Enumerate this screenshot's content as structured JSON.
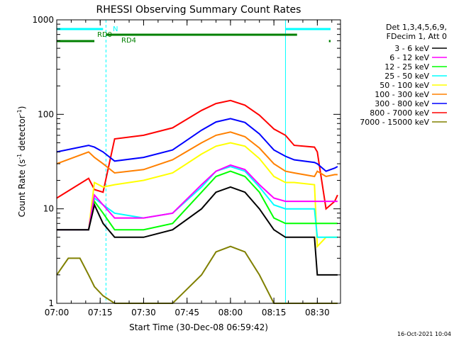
{
  "chart_data": {
    "type": "line",
    "title": "RHESSI Observing Summary Count Rates",
    "xlabel": "Start Time (30-Dec-08 06:59:42)",
    "ylabel": "Count Rate (s",
    "ylabel_sup1": "-1",
    "ylabel_mid": " detector",
    "ylabel_sup2": "-1",
    "ylabel_end": ")",
    "y_scale": "log",
    "ylim": [
      1,
      1000
    ],
    "xlim": [
      "07:00",
      "08:38"
    ],
    "x_ticks": [
      "07:00",
      "07:15",
      "07:30",
      "07:45",
      "08:00",
      "08:15",
      "08:30"
    ],
    "y_ticks": [
      "1",
      "10",
      "100",
      "1000"
    ],
    "legend_placement": "right",
    "legend_header": [
      "Det 1,3,4,5,6,9,",
      "FDecim 1, Att 0"
    ],
    "annotations": {
      "n_label": "N",
      "rd0_label": "RD0",
      "rd4_label": "RD4",
      "date_stamp": "16-Oct-2021 10:04"
    },
    "night_intervals": [
      [
        "07:00",
        "07:17"
      ],
      [
        "08:19",
        "08:38"
      ]
    ],
    "series": [
      {
        "name": "3 - 6 keV",
        "color": "#000000",
        "x": [
          "07:00",
          "07:11",
          "07:13",
          "07:16",
          "07:20",
          "07:30",
          "07:40",
          "07:50",
          "07:55",
          "08:00",
          "08:05",
          "08:10",
          "08:15",
          "08:19",
          "08:22",
          "08:29",
          "08:30",
          "08:33",
          "08:36",
          "08:37"
        ],
        "values": [
          6,
          6,
          11,
          7,
          5,
          5,
          6,
          10,
          15,
          17,
          15,
          10,
          6,
          5,
          5,
          5,
          2,
          2,
          2,
          2
        ]
      },
      {
        "name": "6 - 12 keV",
        "color": "#ff00ff",
        "x": [
          "07:00",
          "07:11",
          "07:13",
          "07:16",
          "07:20",
          "07:30",
          "07:40",
          "07:50",
          "07:55",
          "08:00",
          "08:05",
          "08:10",
          "08:15",
          "08:19",
          "08:22",
          "08:29",
          "08:30",
          "08:33",
          "08:36",
          "08:37"
        ],
        "values": [
          6,
          6,
          14,
          11,
          8,
          8,
          9,
          18,
          25,
          29,
          26,
          18,
          13,
          12,
          12,
          12,
          12,
          12,
          12,
          12
        ]
      },
      {
        "name": "12 - 25 keV",
        "color": "#00ff00",
        "x": [
          "07:00",
          "07:11",
          "07:13",
          "07:16",
          "07:20",
          "07:30",
          "07:40",
          "07:50",
          "07:55",
          "08:00",
          "08:05",
          "08:10",
          "08:15",
          "08:19",
          "08:22",
          "08:29",
          "08:30",
          "08:33",
          "08:36",
          "08:37"
        ],
        "values": [
          6,
          6,
          12,
          9,
          6,
          6,
          7,
          15,
          22,
          25,
          22,
          15,
          8,
          7,
          7,
          7,
          7,
          7,
          7,
          7
        ]
      },
      {
        "name": "25 - 50 keV",
        "color": "#00ffff",
        "x": [
          "07:00",
          "07:11",
          "07:13",
          "07:16",
          "07:20",
          "07:30",
          "07:40",
          "07:50",
          "07:55",
          "08:00",
          "08:05",
          "08:10",
          "08:15",
          "08:19",
          "08:22",
          "08:29",
          "08:30",
          "08:33",
          "08:36",
          "08:37"
        ],
        "values": [
          6,
          6,
          13,
          11,
          9,
          8,
          9,
          17,
          25,
          28,
          25,
          17,
          11,
          10,
          10,
          10,
          5,
          5,
          5,
          5
        ]
      },
      {
        "name": "50 - 100 keV",
        "color": "#ffff00",
        "x": [
          "07:00",
          "07:11",
          "07:13",
          "07:16",
          "07:20",
          "07:30",
          "07:40",
          "07:50",
          "07:55",
          "08:00",
          "08:05",
          "08:10",
          "08:15",
          "08:19",
          "08:22",
          "08:29",
          "08:30",
          "08:33",
          "08:36",
          "08:37"
        ],
        "values": [
          6,
          6,
          19,
          17,
          18,
          20,
          24,
          38,
          46,
          50,
          46,
          34,
          22,
          19,
          19,
          18,
          4,
          5,
          5,
          5
        ]
      },
      {
        "name": "100 - 300 keV",
        "color": "#ff8000",
        "x": [
          "07:00",
          "07:11",
          "07:13",
          "07:16",
          "07:20",
          "07:30",
          "07:40",
          "07:50",
          "07:55",
          "08:00",
          "08:05",
          "08:10",
          "08:15",
          "08:19",
          "08:22",
          "08:29",
          "08:30",
          "08:33",
          "08:36",
          "08:37"
        ],
        "values": [
          30,
          40,
          35,
          30,
          24,
          26,
          33,
          50,
          60,
          65,
          58,
          44,
          30,
          25,
          24,
          22,
          25,
          22,
          23,
          23
        ]
      },
      {
        "name": "300 - 800 keV",
        "color": "#0000ff",
        "x": [
          "07:00",
          "07:11",
          "07:13",
          "07:16",
          "07:20",
          "07:30",
          "07:40",
          "07:50",
          "07:55",
          "08:00",
          "08:05",
          "08:10",
          "08:15",
          "08:19",
          "08:22",
          "08:29",
          "08:30",
          "08:33",
          "08:36",
          "08:37"
        ],
        "values": [
          40,
          47,
          45,
          40,
          32,
          35,
          42,
          68,
          83,
          90,
          82,
          62,
          42,
          36,
          33,
          31,
          30,
          25,
          27,
          28
        ]
      },
      {
        "name": "800 - 7000 keV",
        "color": "#ff0000",
        "x": [
          "07:00",
          "07:11",
          "07:13",
          "07:16",
          "07:20",
          "07:30",
          "07:40",
          "07:50",
          "07:55",
          "08:00",
          "08:05",
          "08:10",
          "08:15",
          "08:19",
          "08:22",
          "08:29",
          "08:30",
          "08:33",
          "08:36",
          "08:37"
        ],
        "values": [
          13,
          21,
          16,
          15,
          55,
          60,
          72,
          110,
          130,
          140,
          125,
          98,
          70,
          60,
          47,
          45,
          40,
          10,
          12,
          14
        ]
      },
      {
        "name": "7000 - 15000 keV",
        "color": "#808000",
        "x": [
          "07:00",
          "07:04",
          "07:08",
          "07:11",
          "07:13",
          "07:16",
          "07:20",
          "07:30",
          "07:40",
          "07:50",
          "07:55",
          "08:00",
          "08:05",
          "08:10",
          "08:15",
          "08:19",
          "08:22",
          "08:29",
          "08:30",
          "08:33",
          "08:36",
          "08:37"
        ],
        "values": [
          2,
          3,
          3,
          2,
          1.5,
          1.2,
          1,
          1,
          1,
          2,
          3.5,
          4,
          3.5,
          2,
          1,
          1,
          1,
          1,
          1,
          1,
          1,
          1
        ]
      }
    ]
  }
}
